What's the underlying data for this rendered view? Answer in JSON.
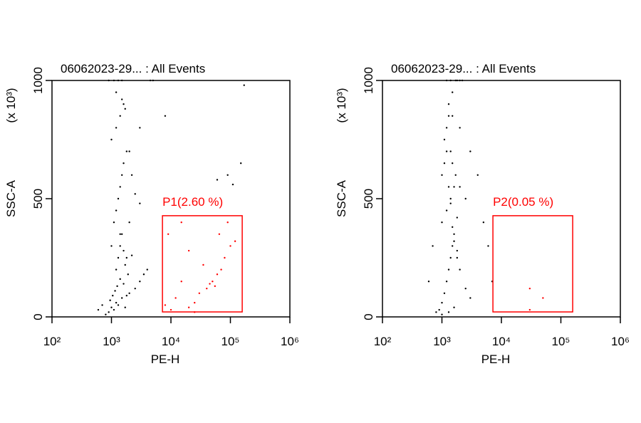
{
  "chart_data": [
    {
      "type": "scatter",
      "title": "06062023-29... : All Events",
      "x_label": "PE-H",
      "y_label": "SSC-A",
      "y_unit": "(x 10³)",
      "xscale": "log",
      "xlim": [
        100,
        1000000
      ],
      "xticks": [
        {
          "value": 100,
          "label": "10²"
        },
        {
          "value": 1000,
          "label": "10³"
        },
        {
          "value": 10000,
          "label": "10⁴"
        },
        {
          "value": 100000,
          "label": "10⁵"
        },
        {
          "value": 1000000,
          "label": "10⁶"
        }
      ],
      "ylim": [
        0,
        1000
      ],
      "yticks": [
        0,
        500,
        1000
      ],
      "series": [
        {
          "color": "#000000",
          "x": [
            900,
            1000,
            1100,
            1200,
            1300,
            1500,
            1700,
            2000,
            2500,
            3000,
            3500,
            4000,
            800,
            950,
            1050,
            1150,
            1250,
            1400,
            1600,
            1800,
            700,
            600,
            1200,
            1300,
            1400,
            1500,
            1600,
            1700,
            1900,
            2200,
            1100,
            1200,
            1300,
            1400,
            1500,
            1600,
            1800,
            2000,
            1000,
            1200,
            1400,
            1600,
            900,
            1100,
            1300,
            1500,
            4500,
            5000,
            1200,
            1500,
            1700,
            2000,
            2200,
            2500,
            3000,
            1000,
            1400,
            1800,
            3000,
            8000,
            60000,
            90000,
            110000,
            150000,
            170000
          ],
          "y": [
            20,
            40,
            30,
            60,
            50,
            80,
            40,
            100,
            120,
            150,
            180,
            200,
            10,
            70,
            90,
            110,
            130,
            160,
            140,
            90,
            50,
            30,
            200,
            250,
            300,
            350,
            280,
            220,
            180,
            260,
            400,
            450,
            500,
            550,
            600,
            650,
            700,
            400,
            750,
            800,
            850,
            900,
            1000,
            1000,
            1000,
            1000,
            1000,
            1000,
            950,
            920,
            880,
            700,
            600,
            520,
            480,
            300,
            350,
            250,
            800,
            850,
            580,
            600,
            560,
            650,
            980
          ]
        },
        {
          "color": "#ff0000",
          "x": [
            8000,
            10000,
            12000,
            15000,
            20000,
            25000,
            30000,
            40000,
            50000,
            60000,
            70000,
            80000,
            100000,
            9000,
            20000,
            35000,
            45000,
            55000,
            65000,
            90000,
            120000,
            15000,
            25000
          ],
          "y": [
            50,
            30,
            80,
            150,
            40,
            60,
            100,
            120,
            150,
            180,
            200,
            250,
            300,
            350,
            280,
            220,
            140,
            130,
            350,
            400,
            320,
            400,
            20
          ]
        }
      ],
      "gate": {
        "label": "P1(2.60 %)",
        "color": "#ff0000",
        "x": [
          7200,
          158000
        ],
        "y": [
          21,
          428
        ]
      }
    },
    {
      "type": "scatter",
      "title": "06062023-29... : All Events",
      "x_label": "PE-H",
      "y_label": "SSC-A",
      "y_unit": "(x 10³)",
      "xscale": "log",
      "xlim": [
        100,
        1000000
      ],
      "xticks": [
        {
          "value": 100,
          "label": "10²"
        },
        {
          "value": 1000,
          "label": "10³"
        },
        {
          "value": 10000,
          "label": "10⁴"
        },
        {
          "value": 100000,
          "label": "10⁵"
        },
        {
          "value": 1000000,
          "label": "10⁶"
        }
      ],
      "ylim": [
        0,
        1000
      ],
      "yticks": [
        0,
        500,
        1000
      ],
      "series": [
        {
          "color": "#000000",
          "x": [
            900,
            1000,
            1100,
            1200,
            1300,
            1400,
            1500,
            1600,
            1800,
            2000,
            2500,
            3000,
            800,
            1000,
            1200,
            1400,
            1600,
            1800,
            700,
            600,
            1000,
            1100,
            1200,
            1300,
            1400,
            1500,
            1600,
            1800,
            1100,
            1200,
            1300,
            1400,
            1500,
            1700,
            2000,
            2500,
            1300,
            1500,
            1700,
            2000,
            1200,
            1400,
            1800,
            2200,
            1500,
            2000,
            3000,
            4000,
            5000,
            6000,
            7000,
            1000,
            1300,
            1600
          ],
          "y": [
            30,
            60,
            100,
            150,
            200,
            250,
            300,
            350,
            280,
            200,
            120,
            80,
            20,
            400,
            450,
            500,
            550,
            420,
            300,
            150,
            600,
            650,
            700,
            550,
            480,
            380,
            320,
            250,
            750,
            800,
            850,
            700,
            650,
            600,
            550,
            500,
            900,
            950,
            1000,
            1000,
            1000,
            1000,
            1000,
            1000,
            850,
            800,
            700,
            600,
            400,
            300,
            150,
            10,
            20,
            40
          ]
        },
        {
          "color": "#ff0000",
          "x": [
            30000,
            50000,
            30000
          ],
          "y": [
            120,
            80,
            30
          ]
        }
      ],
      "gate": {
        "label": "P2(0.05 %)",
        "color": "#ff0000",
        "x": [
          7200,
          158000
        ],
        "y": [
          21,
          428
        ]
      }
    }
  ]
}
